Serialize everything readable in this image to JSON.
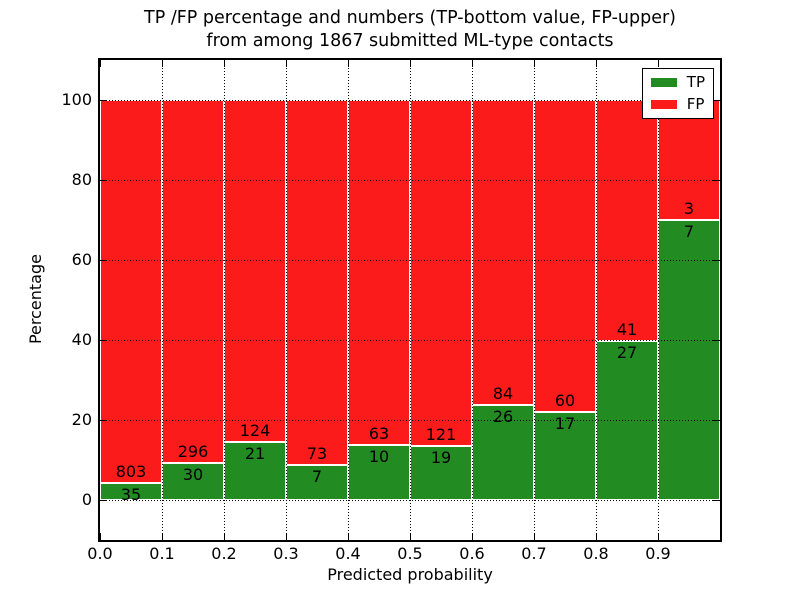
{
  "title": {
    "line1": "TP /FP percentage and numbers (TP-bottom value, FP-upper)",
    "line2": "from among 1867 submitted ML-type contacts"
  },
  "legend": {
    "items": [
      {
        "label": "TP",
        "color": "#228B22"
      },
      {
        "label": "FP",
        "color": "#FB1B1B"
      }
    ],
    "position": "upper right"
  },
  "colors": {
    "tp": "#228B22",
    "fp": "#FB1B1B",
    "axis": "#000000",
    "grid": "#000000",
    "background": "#FFFFFF"
  },
  "chart_data": {
    "type": "bar",
    "stacked": true,
    "normalized": "each bar totals 100%",
    "title": "TP /FP percentage and numbers (TP-bottom value, FP-upper) from among 1867 submitted ML-type contacts",
    "xlabel": "Predicted probability",
    "ylabel": "Percentage",
    "xlim": [
      0.0,
      1.0
    ],
    "ylim": [
      -10,
      110
    ],
    "bin_width": 0.1,
    "x_tick_labels": [
      "0.0",
      "0.1",
      "0.2",
      "0.3",
      "0.4",
      "0.5",
      "0.6",
      "0.7",
      "0.8",
      "0.9"
    ],
    "y_tick_values": [
      0,
      20,
      40,
      60,
      80,
      100
    ],
    "grid": true,
    "legend_position": "upper right",
    "total_contacts": 1867,
    "categories": [
      "0.0-0.1",
      "0.1-0.2",
      "0.2-0.3",
      "0.3-0.4",
      "0.4-0.5",
      "0.5-0.6",
      "0.6-0.7",
      "0.7-0.8",
      "0.8-0.9",
      "0.9-1.0"
    ],
    "series": [
      {
        "name": "TP",
        "color": "#228B22",
        "counts": [
          35,
          30,
          21,
          7,
          10,
          19,
          26,
          17,
          27,
          7
        ]
      },
      {
        "name": "FP",
        "color": "#FB1B1B",
        "counts": [
          803,
          296,
          124,
          73,
          63,
          121,
          84,
          60,
          41,
          3
        ]
      }
    ],
    "tp_percent_of_bar": [
      4.2,
      9.2,
      14.5,
      8.8,
      13.7,
      13.6,
      23.6,
      22.1,
      39.7,
      70.0
    ]
  }
}
